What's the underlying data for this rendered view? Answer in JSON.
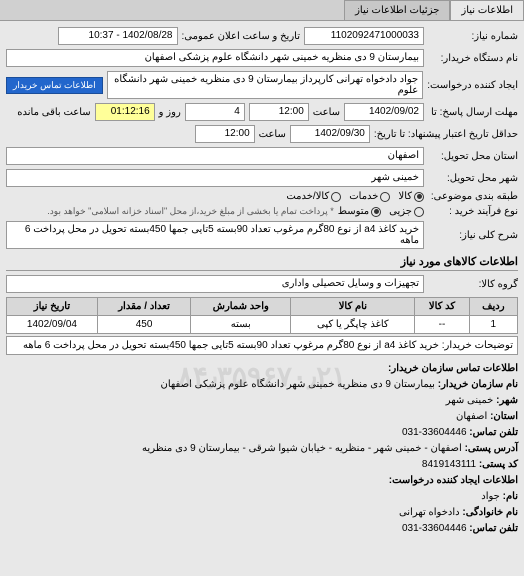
{
  "tabs": {
    "main": "اطلاعات نیاز",
    "details": "جزئیات اطلاعات نیاز"
  },
  "fields": {
    "request_number_label": "شماره نیاز:",
    "request_number": "1102092471000033",
    "announce_date_label": "تاریخ و ساعت اعلان عمومی:",
    "announce_date": "1402/08/28 - 10:37",
    "buyer_org_label": "نام دستگاه خریدار:",
    "buyer_org": "بیمارستان 9 دی منظریه خمینی شهر دانشگاه علوم پزشکی اصفهان",
    "requester_label": "ایجاد کننده درخواست:",
    "requester": "جواد دادخواه تهرانی کارپرداز بیمارستان 9 دی منظریه خمینی شهر دانشگاه علوم",
    "contact_btn": "اطلاعات تماس خریدار",
    "response_deadline_label": "مهلت ارسال پاسخ: تا",
    "response_date": "1402/09/02",
    "response_time_label": "ساعت",
    "response_time": "12:00",
    "days_label": "روز و",
    "days_remaining": "4",
    "time_remaining": "01:12:16",
    "remaining_label": "ساعت باقی مانده",
    "validity_label": "حداقل تاریخ اعتبار پیشنهاد: تا تاریخ:",
    "validity_date": "1402/09/30",
    "validity_time_label": "ساعت",
    "validity_time": "12:00",
    "province_label": "استان محل تحویل:",
    "province": "اصفهان",
    "city_label": "شهر محل تحویل:",
    "city": "خمینی شهر",
    "category_label": "طبقه بندی موضوعی:",
    "category_goods": "کالا",
    "category_services": "خدمات",
    "category_both": "کالا/خدمت",
    "purchase_type_label": "نوع فرآیند خرید :",
    "purchase_small": "جزیی",
    "purchase_medium": "متوسط",
    "purchase_note": "* پرداخت تمام یا بخشی از مبلغ خرید،از محل \"اسناد خزانه اسلامی\" خواهد بود.",
    "description_label": "شرح کلی نیاز:",
    "description": "خرید کاغذ a4 از نوع 80گرم مرغوب تعداد 90بسته 5تایی جمها 450بسته تحویل در محل پرداخت 6 ماهه"
  },
  "goods_section": {
    "title": "اطلاعات کالاهای مورد نیاز",
    "group_label": "گروه کالا:",
    "group": "تجهیزات و وسایل تحصیلی واداری"
  },
  "table": {
    "headers": {
      "row": "ردیف",
      "code": "کد کالا",
      "name": "نام کالا",
      "unit": "واحد شمارش",
      "qty": "تعداد / مقدار",
      "date": "تاریخ نیاز"
    },
    "rows": [
      {
        "row": "1",
        "code": "--",
        "name": "کاغذ چاپگر یا کپی",
        "unit": "بسته",
        "qty": "450",
        "date": "1402/09/04"
      }
    ],
    "explanation_label": "توضیحات خریدار:",
    "explanation": "خرید کاغذ a4 از نوع 80گرم مرغوپ تعداد 90بسته 5تایی جمها 450بسته تحویل در محل پرداخت 6 ماهه"
  },
  "contact": {
    "title": "اطلاعات تماس سازمان خریدار:",
    "org_label": "نام سازمان خریدار:",
    "org": "بیمارستان 9 دی منظریه خمینی شهر دانشگاه علوم پزشکی اصفهان",
    "city_label": "شهر:",
    "city": "خمینی شهر",
    "province_label": "استان:",
    "province": "اصفهان",
    "phone_label": "تلفن تماس:",
    "phone": "33604446-031",
    "address_label": "آدرس پستی:",
    "address": "اصفهان - خمینی شهر - منظریه - خیابان شیوا شرقی - بیمارستان 9 دی منظریه",
    "postal_label": "کد پستی:",
    "postal": "8419143111",
    "requester_title": "اطلاعات ایجاد کننده درخواست:",
    "name_label": "نام:",
    "name": "جواد",
    "family_label": "نام خانوادگی:",
    "family": "دادخواه تهرانی",
    "req_phone_label": "تلفن تماس:",
    "req_phone": "33604446-031"
  },
  "watermark": "۸۴٫۳۵۹۶۷۰٫۲۱"
}
